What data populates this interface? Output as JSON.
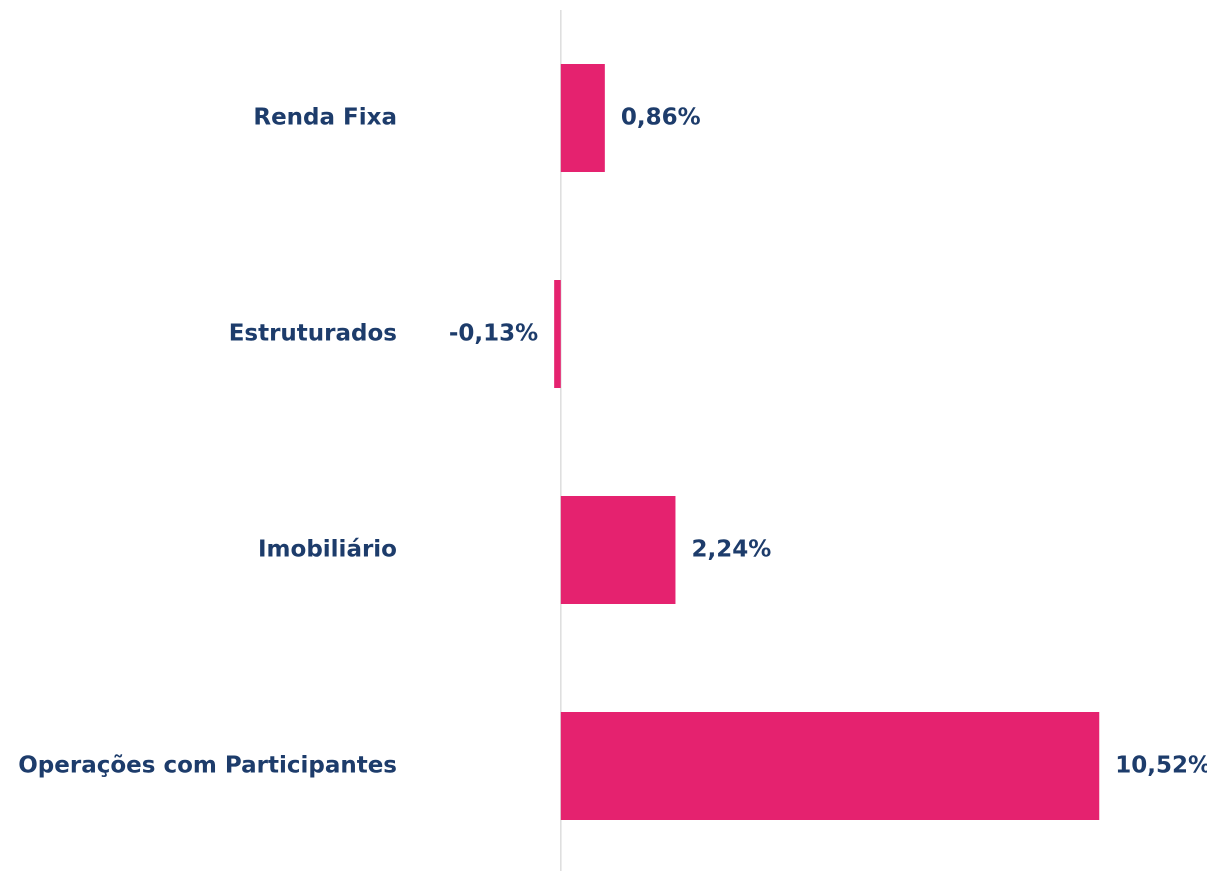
{
  "chart_data": {
    "type": "bar",
    "orientation": "horizontal",
    "categories": [
      "Renda Fixa",
      "Estruturados",
      "Imobiliário",
      "Operações com Participantes"
    ],
    "values": [
      0.86,
      -0.13,
      2.24,
      10.52
    ],
    "value_labels": [
      "0,86%",
      "-0,13%",
      "2,24%",
      "10,52%"
    ],
    "color": "#e5226f",
    "xlim": [
      -10,
      12
    ]
  }
}
